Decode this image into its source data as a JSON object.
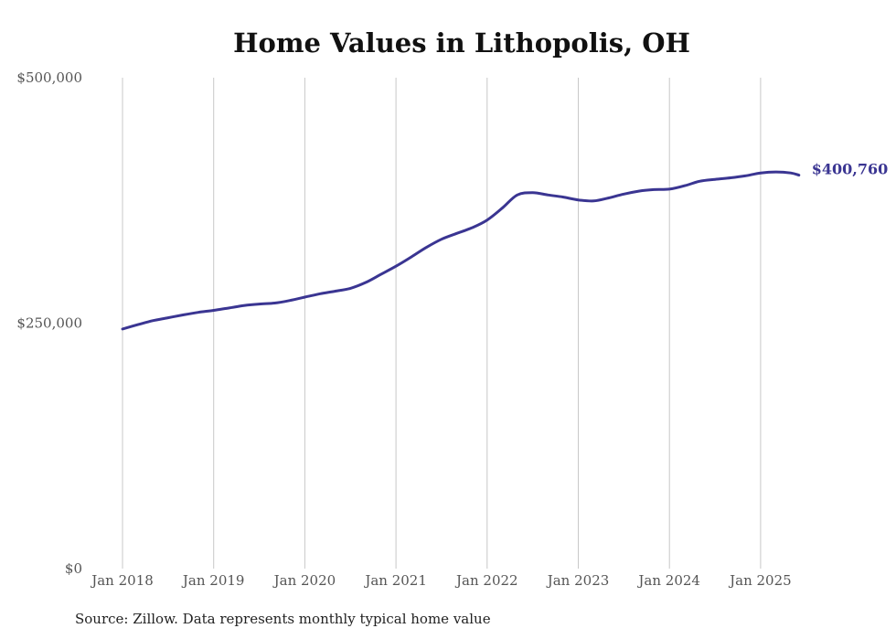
{
  "title": "Home Values in Lithopolis, OH",
  "source_note": "Source: Zillow. Data represents monthly typical home value",
  "colors": {
    "line": "#3a3592",
    "grid": "#c8c8c8",
    "text": "#555555"
  },
  "chart_data": {
    "type": "line",
    "title": "Home Values in Lithopolis, OH",
    "xlabel": "",
    "ylabel": "",
    "ylim": [
      0,
      500000
    ],
    "yticks": [
      {
        "value": 0,
        "label": "$0"
      },
      {
        "value": 250000,
        "label": "$250,000"
      },
      {
        "value": 500000,
        "label": "$500,000"
      }
    ],
    "xticks": [
      {
        "value": 2018.0,
        "label": "Jan 2018"
      },
      {
        "value": 2019.0,
        "label": "Jan 2019"
      },
      {
        "value": 2020.0,
        "label": "Jan 2020"
      },
      {
        "value": 2021.0,
        "label": "Jan 2021"
      },
      {
        "value": 2022.0,
        "label": "Jan 2022"
      },
      {
        "value": 2023.0,
        "label": "Jan 2023"
      },
      {
        "value": 2024.0,
        "label": "Jan 2024"
      },
      {
        "value": 2025.0,
        "label": "Jan 2025"
      }
    ],
    "grid": "vertical",
    "end_label": "$400,760",
    "series": [
      {
        "x": [
          2018.0,
          2018.17,
          2018.33,
          2018.5,
          2018.67,
          2018.83,
          2019.0,
          2019.17,
          2019.33,
          2019.5,
          2019.67,
          2019.83,
          2020.0,
          2020.17,
          2020.33,
          2020.5,
          2020.67,
          2020.83,
          2021.0,
          2021.17,
          2021.33,
          2021.5,
          2021.67,
          2021.83,
          2022.0,
          2022.17,
          2022.33,
          2022.5,
          2022.67,
          2022.83,
          2023.0,
          2023.17,
          2023.33,
          2023.5,
          2023.67,
          2023.83,
          2024.0,
          2024.17,
          2024.33,
          2024.5,
          2024.67,
          2024.83,
          2025.0,
          2025.17,
          2025.33,
          2025.42
        ],
        "y": [
          244000,
          248500,
          252500,
          255500,
          258500,
          261000,
          263000,
          265500,
          268000,
          269500,
          270500,
          273000,
          276500,
          280000,
          282500,
          285500,
          291500,
          299500,
          308000,
          317500,
          327000,
          335500,
          341500,
          347000,
          355000,
          367500,
          380500,
          383000,
          380500,
          378500,
          375500,
          374500,
          377500,
          381500,
          384500,
          386000,
          386500,
          390000,
          394500,
          396500,
          398000,
          400000,
          403000,
          404000,
          403000,
          400760
        ]
      }
    ]
  }
}
